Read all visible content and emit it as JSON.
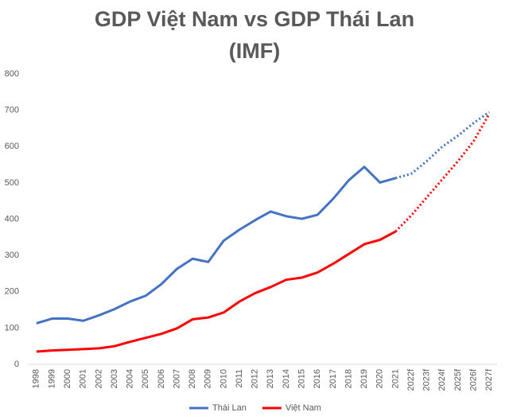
{
  "chart_data": {
    "type": "line",
    "title": "GDP Việt Nam vs GDP Thái Lan (IMF)",
    "categories": [
      "1998",
      "1999",
      "2000",
      "2001",
      "2002",
      "2003",
      "2004",
      "2005",
      "2006",
      "2007",
      "2008",
      "2009",
      "2010",
      "2011",
      "2012",
      "2013",
      "2014",
      "2015",
      "2016",
      "2017",
      "2018",
      "2019",
      "2020",
      "2021",
      "2022f",
      "2023f",
      "2024f",
      "2025f",
      "2026f",
      "2027f"
    ],
    "series": [
      {
        "name": "Thái Lan",
        "color": "#4472c4",
        "values": [
          113,
          126,
          126,
          120,
          135,
          152,
          173,
          189,
          221,
          263,
          291,
          282,
          341,
          371,
          397,
          421,
          408,
          401,
          412,
          456,
          507,
          544,
          501,
          513,
          525,
          560,
          600,
          630,
          665,
          695
        ]
      },
      {
        "name": "Việt Nam",
        "color": "#ff0000",
        "values": [
          35,
          38,
          40,
          42,
          44,
          50,
          62,
          73,
          84,
          99,
          124,
          129,
          143,
          173,
          196,
          213,
          233,
          239,
          253,
          277,
          304,
          331,
          343,
          366,
          410,
          460,
          510,
          560,
          615,
          690
        ]
      }
    ],
    "ylim": [
      0,
      800
    ],
    "yticks": [
      0,
      100,
      200,
      300,
      400,
      500,
      600,
      700,
      800
    ],
    "grid": false,
    "legend": "bottom"
  }
}
